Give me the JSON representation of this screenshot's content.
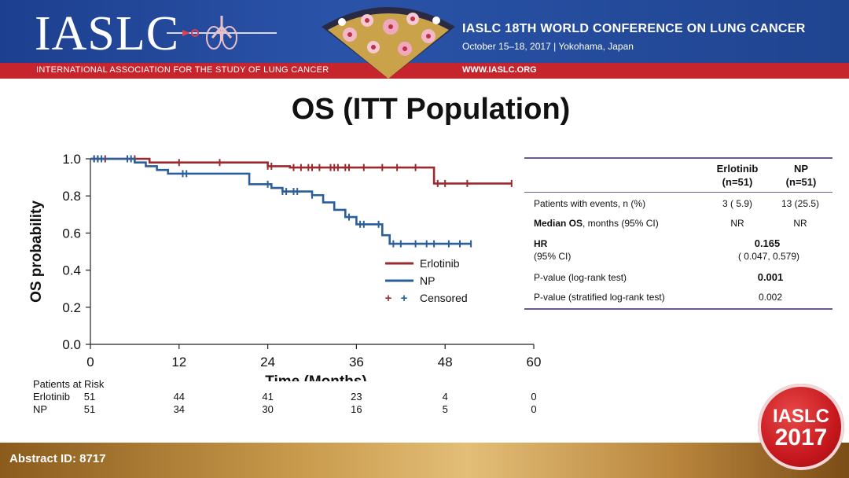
{
  "header": {
    "logo": "IASLC",
    "association": "INTERNATIONAL ASSOCIATION FOR THE STUDY OF LUNG CANCER",
    "conference_title": "IASLC 18TH WORLD CONFERENCE ON LUNG CANCER",
    "conference_date": "October 15–18, 2017 | Yokohama, Japan",
    "url": "WWW.IASLC.ORG"
  },
  "title": "OS (ITT Population)",
  "colors": {
    "erlotinib": "#9b2a2e",
    "np": "#2a5f9a",
    "banner_blue": "#1d3f8f",
    "banner_red": "#c6252d"
  },
  "chart_data": {
    "type": "line",
    "xlabel": "Time (Months)",
    "ylabel": "OS probability",
    "xlim": [
      0,
      60
    ],
    "ylim": [
      0.0,
      1.0
    ],
    "x_ticks": [
      "0",
      "12",
      "24",
      "36",
      "48",
      "60"
    ],
    "y_ticks": [
      "0.0",
      "0.2",
      "0.4",
      "0.6",
      "0.8",
      "1.0"
    ],
    "grid": false,
    "legend_position": "right",
    "legend": [
      "Erlotinib",
      "NP",
      "Censored"
    ],
    "series": [
      {
        "name": "Erlotinib",
        "step_x": [
          0,
          8,
          24,
          27,
          46.5,
          57
        ],
        "step_y": [
          1.0,
          0.98,
          0.96,
          0.953,
          0.867,
          0.867
        ],
        "censored_x": [
          0.5,
          1,
          2,
          6,
          12,
          17.5,
          24,
          24.5,
          27.5,
          28.5,
          29.5,
          30,
          31,
          32.5,
          33,
          33.5,
          34.5,
          35,
          37,
          39.5,
          41.5,
          44,
          47,
          48,
          51,
          57
        ]
      },
      {
        "name": "NP",
        "step_x": [
          0,
          6,
          7.5,
          9,
          10.5,
          13.5,
          21.5,
          24.5,
          26,
          30,
          31.5,
          33,
          34.5,
          36,
          39.5,
          40.5,
          51.5
        ],
        "step_y": [
          1.0,
          0.98,
          0.96,
          0.94,
          0.92,
          0.92,
          0.863,
          0.843,
          0.824,
          0.804,
          0.765,
          0.725,
          0.686,
          0.647,
          0.588,
          0.542,
          0.542
        ],
        "censored_x": [
          0.5,
          1,
          1.5,
          5,
          5.5,
          12.5,
          13,
          24,
          26,
          26.5,
          27.5,
          28,
          30,
          35,
          36.5,
          37,
          39,
          41,
          42,
          44,
          45.5,
          46.5,
          48.5,
          50,
          51.5
        ]
      }
    ]
  },
  "risk_table": {
    "title": "Patients at Risk",
    "rows": [
      {
        "label": "Erlotinib",
        "values": [
          "51",
          "44",
          "41",
          "23",
          "4",
          "0"
        ]
      },
      {
        "label": "NP",
        "values": [
          "51",
          "34",
          "30",
          "16",
          "5",
          "0"
        ]
      }
    ]
  },
  "stats_table": {
    "col1_header": [
      "Erlotinib",
      "(n=51)"
    ],
    "col2_header": [
      "NP",
      "(n=51)"
    ],
    "rows": [
      {
        "label_bold": "",
        "label": "Patients with events, n (%)",
        "v1": "3 ( 5.9)",
        "v2": "13 (25.5)"
      },
      {
        "label_bold": "Median OS",
        "label": ", months  (95% CI)",
        "v1": "NR",
        "v2": "NR"
      },
      {
        "label_bold": "HR",
        "label": "(95% CI)",
        "merged_value": "0.165",
        "merged_ci": "( 0.047, 0.579)"
      },
      {
        "label_bold": "",
        "label": "P-value (log-rank test)",
        "merged_value": "0.001"
      },
      {
        "label_bold": "",
        "label": "P-value  (stratified log-rank test)",
        "merged_value": "0.002"
      }
    ]
  },
  "footer": {
    "abstract": "Abstract ID: 8717",
    "badge_line1": "IASLC",
    "badge_line2": "2017"
  }
}
